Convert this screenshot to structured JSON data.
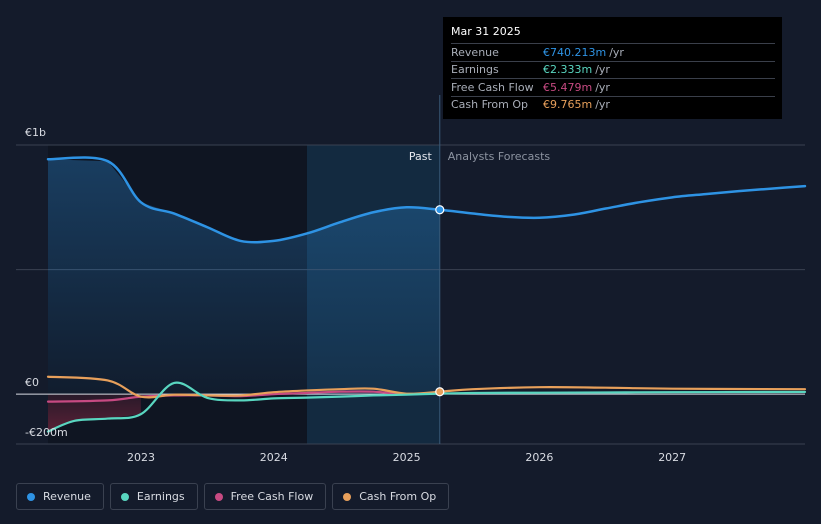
{
  "chart_data": {
    "type": "line",
    "y_axis": {
      "ticks": [
        {
          "value": 1000,
          "label": "€1b"
        },
        {
          "value": 0,
          "label": "€0"
        },
        {
          "value": -200,
          "label": "-€200m"
        }
      ],
      "ylim": [
        -200,
        1000
      ]
    },
    "x_axis": {
      "ticks": [
        {
          "value": 2023,
          "label": "2023"
        },
        {
          "value": 2024,
          "label": "2024"
        },
        {
          "value": 2025,
          "label": "2025"
        },
        {
          "value": 2026,
          "label": "2026"
        },
        {
          "value": 2027,
          "label": "2027"
        }
      ],
      "xlim": [
        2022.3,
        2028.0
      ]
    },
    "past_label": "Past",
    "forecast_label": "Analysts Forecasts",
    "divider_x": 2025.25,
    "highlight_start_x": 2024.25,
    "series": [
      {
        "name": "Revenue",
        "color": "#2e93e4",
        "x": [
          2022.3,
          2022.75,
          2023.0,
          2023.25,
          2023.5,
          2023.75,
          2024.0,
          2024.25,
          2024.5,
          2024.75,
          2025.0,
          2025.25,
          2025.5,
          2025.75,
          2026.0,
          2026.25,
          2026.5,
          2026.75,
          2027.0,
          2027.25,
          2027.5,
          2027.75,
          2028.0
        ],
        "y": [
          943,
          935,
          770,
          725,
          670,
          615,
          615,
          645,
          690,
          730,
          750,
          740,
          725,
          712,
          708,
          720,
          745,
          770,
          790,
          803,
          815,
          825,
          835
        ]
      },
      {
        "name": "Earnings",
        "color": "#59d6c0",
        "x": [
          2022.3,
          2022.5,
          2022.75,
          2023.0,
          2023.25,
          2023.5,
          2023.75,
          2024.0,
          2024.25,
          2024.5,
          2024.75,
          2025.0,
          2025.25,
          2025.5,
          2026.0,
          2026.5,
          2027.0,
          2028.0
        ],
        "y": [
          -150,
          -107,
          -98,
          -80,
          45,
          -15,
          -25,
          -17,
          -14,
          -10,
          -5,
          -2,
          2.3,
          5,
          6,
          7,
          8,
          9
        ]
      },
      {
        "name": "Free Cash Flow",
        "color": "#c74a82",
        "x": [
          2022.3,
          2022.75,
          2023.0,
          2023.25,
          2023.5,
          2023.75,
          2024.0,
          2024.25,
          2024.5,
          2024.75,
          2025.0,
          2025.25
        ],
        "y": [
          -30,
          -25,
          -10,
          -5,
          -5,
          -8,
          0,
          5,
          10,
          10,
          0,
          5.5
        ]
      },
      {
        "name": "Cash From Op",
        "color": "#e8a05b",
        "x": [
          2022.3,
          2022.75,
          2023.0,
          2023.25,
          2023.5,
          2023.75,
          2024.0,
          2024.25,
          2024.5,
          2024.75,
          2025.0,
          2025.25,
          2025.5,
          2026.0,
          2026.5,
          2027.0,
          2028.0
        ],
        "y": [
          70,
          55,
          -10,
          -2,
          -5,
          -5,
          8,
          15,
          20,
          22,
          2,
          9.8,
          20,
          28,
          26,
          22,
          20
        ]
      }
    ]
  },
  "tooltip": {
    "date": "Mar 31 2025",
    "rows": [
      {
        "label": "Revenue",
        "value": "€740.213m",
        "unit": "/yr",
        "color": "#2e93e4"
      },
      {
        "label": "Earnings",
        "value": "€2.333m",
        "unit": "/yr",
        "color": "#59d6c0"
      },
      {
        "label": "Free Cash Flow",
        "value": "€5.479m",
        "unit": "/yr",
        "color": "#c74a82"
      },
      {
        "label": "Cash From Op",
        "value": "€9.765m",
        "unit": "/yr",
        "color": "#e8a05b"
      }
    ]
  },
  "legend": [
    {
      "label": "Revenue",
      "color": "#2e93e4"
    },
    {
      "label": "Earnings",
      "color": "#59d6c0"
    },
    {
      "label": "Free Cash Flow",
      "color": "#c74a82"
    },
    {
      "label": "Cash From Op",
      "color": "#e8a05b"
    }
  ]
}
